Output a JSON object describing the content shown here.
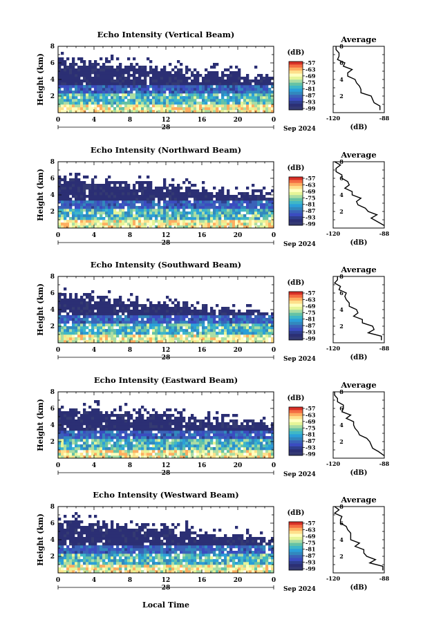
{
  "panels": [
    {
      "title": "Echo Intensity (Vertical Beam)",
      "avg_title": "Average",
      "profile_shift": 0,
      "cloud_top": 6.3
    },
    {
      "title": "Echo Intensity (Northward Beam)",
      "avg_title": "Average",
      "profile_shift": 1,
      "cloud_top": 6.0
    },
    {
      "title": "Echo Intensity (Southward Beam)",
      "avg_title": "Average",
      "profile_shift": 2,
      "cloud_top": 5.7
    },
    {
      "title": "Echo Intensity (Eastward Beam)",
      "avg_title": "Average",
      "profile_shift": 3,
      "cloud_top": 6.1
    },
    {
      "title": "Echo Intensity (Westward Beam)",
      "avg_title": "Average",
      "profile_shift": 4,
      "cloud_top": 6.2
    }
  ],
  "chart_data": {
    "type": "heatmap",
    "ylabel": "Height (km)",
    "xlabel": "Local Time",
    "unit_label": "(dB)",
    "avg_xlabel": "(dB)",
    "date_label": "Sep 2024",
    "day_label": "28",
    "x_ticks": [
      "0",
      "4",
      "8",
      "12",
      "16",
      "20",
      "0"
    ],
    "y_ticks": [
      "2",
      "4",
      "6",
      "8"
    ],
    "avg_x_ticks": [
      "-120",
      "-88"
    ],
    "xlim_hours": [
      0,
      24
    ],
    "ylim_km": [
      0,
      8
    ],
    "avg_xlim": [
      -120,
      -85
    ],
    "colorbar_ticks": [
      "-57",
      "-63",
      "-69",
      "-75",
      "-81",
      "-87",
      "-93",
      "-99"
    ],
    "colorbar_colors": [
      "#d73027",
      "#f46d43",
      "#fdae61",
      "#fee08b",
      "#ffffbf",
      "#e6f598",
      "#abdda4",
      "#66c2a5",
      "#3fb7c7",
      "#2b9fd8",
      "#3288bd",
      "#3a63b8",
      "#3b4cc0",
      "#2f3f8f",
      "#2b2f74",
      "#343a72"
    ],
    "average_profile_height_km": [
      0.3,
      0.8,
      1.2,
      1.6,
      2.0,
      2.4,
      2.8,
      3.2,
      3.6,
      4.0,
      4.4,
      4.8,
      5.2,
      5.6,
      6.0,
      6.4,
      6.8,
      7.2,
      7.6,
      8.0
    ],
    "average_profile_db": [
      -86,
      -88,
      -94,
      -92,
      -95,
      -99,
      -101,
      -104,
      -103,
      -106,
      -108,
      -110,
      -109,
      -112,
      -113,
      -115,
      -116,
      -118,
      -117,
      -119
    ]
  }
}
